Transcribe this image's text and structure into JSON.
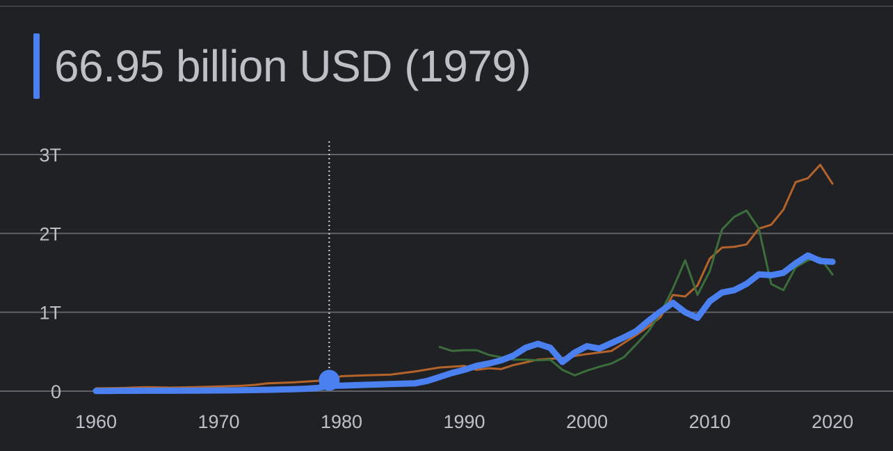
{
  "headline": {
    "value_text": "66.95 billion USD (1979)"
  },
  "colors": {
    "background": "#202124",
    "grid": "#5f6368",
    "axis_text": "#bdc1c6",
    "primary_series": "#4a80f0",
    "series_orange": "#b4642b",
    "series_green": "#3c6e3c"
  },
  "chart_data": {
    "type": "line",
    "title": "",
    "xlabel": "",
    "ylabel": "",
    "xlim": [
      1960,
      2020
    ],
    "ylim": [
      0,
      3
    ],
    "y_unit": "trillion USD",
    "x_ticks": [
      "1960",
      "1970",
      "1980",
      "1990",
      "2000",
      "2010",
      "2020"
    ],
    "y_ticks": [
      "0",
      "1T",
      "2T",
      "3T"
    ],
    "grid": true,
    "highlight": {
      "x": 1979,
      "y": 0.06695
    },
    "series": [
      {
        "color": "#4a80f0",
        "primary": true,
        "x": [
          1960,
          1961,
          1962,
          1963,
          1964,
          1965,
          1966,
          1967,
          1968,
          1969,
          1970,
          1971,
          1972,
          1973,
          1974,
          1975,
          1976,
          1977,
          1978,
          1979,
          1980,
          1981,
          1982,
          1983,
          1984,
          1985,
          1986,
          1987,
          1988,
          1989,
          1990,
          1991,
          1992,
          1993,
          1994,
          1995,
          1996,
          1997,
          1998,
          1999,
          2000,
          2001,
          2002,
          2003,
          2004,
          2005,
          2006,
          2007,
          2008,
          2009,
          2010,
          2011,
          2012,
          2013,
          2014,
          2015,
          2016,
          2017,
          2018,
          2019,
          2020
        ],
        "y": [
          0.003,
          0.003,
          0.004,
          0.004,
          0.005,
          0.005,
          0.005,
          0.006,
          0.007,
          0.008,
          0.009,
          0.01,
          0.012,
          0.014,
          0.017,
          0.021,
          0.025,
          0.03,
          0.04,
          0.067,
          0.07,
          0.075,
          0.08,
          0.085,
          0.09,
          0.095,
          0.1,
          0.13,
          0.18,
          0.23,
          0.27,
          0.32,
          0.35,
          0.39,
          0.45,
          0.55,
          0.6,
          0.55,
          0.37,
          0.49,
          0.57,
          0.54,
          0.61,
          0.68,
          0.76,
          0.89,
          1.01,
          1.12,
          1.0,
          0.93,
          1.14,
          1.25,
          1.28,
          1.36,
          1.48,
          1.47,
          1.5,
          1.62,
          1.72,
          1.65,
          1.64
        ]
      },
      {
        "color": "#b4642b",
        "x": [
          1960,
          1962,
          1964,
          1966,
          1968,
          1970,
          1972,
          1973,
          1974,
          1976,
          1978,
          1979,
          1980,
          1982,
          1984,
          1986,
          1988,
          1990,
          1991,
          1992,
          1993,
          1994,
          1996,
          1998,
          2000,
          2001,
          2002,
          2003,
          2004,
          2005,
          2006,
          2007,
          2008,
          2009,
          2010,
          2011,
          2012,
          2013,
          2014,
          2015,
          2016,
          2017,
          2018,
          2019,
          2020
        ],
        "y": [
          0.035,
          0.04,
          0.05,
          0.045,
          0.05,
          0.06,
          0.07,
          0.08,
          0.1,
          0.11,
          0.13,
          0.15,
          0.19,
          0.2,
          0.21,
          0.25,
          0.3,
          0.32,
          0.27,
          0.29,
          0.28,
          0.33,
          0.4,
          0.42,
          0.47,
          0.49,
          0.51,
          0.61,
          0.71,
          0.82,
          0.94,
          1.22,
          1.2,
          1.34,
          1.68,
          1.82,
          1.83,
          1.86,
          2.06,
          2.11,
          2.3,
          2.65,
          2.7,
          2.87,
          2.63
        ]
      },
      {
        "color": "#3c6e3c",
        "x": [
          1988,
          1989,
          1990,
          1991,
          1992,
          1993,
          1994,
          1995,
          1996,
          1997,
          1998,
          1999,
          2000,
          2001,
          2002,
          2003,
          2004,
          2005,
          2006,
          2007,
          2008,
          2009,
          2010,
          2011,
          2012,
          2013,
          2014,
          2015,
          2016,
          2017,
          2018,
          2019,
          2020
        ],
        "y": [
          0.56,
          0.51,
          0.52,
          0.52,
          0.46,
          0.43,
          0.4,
          0.4,
          0.39,
          0.4,
          0.27,
          0.2,
          0.26,
          0.31,
          0.35,
          0.43,
          0.59,
          0.76,
          0.99,
          1.3,
          1.66,
          1.22,
          1.52,
          2.05,
          2.21,
          2.29,
          2.06,
          1.36,
          1.28,
          1.57,
          1.66,
          1.69,
          1.48
        ]
      }
    ]
  }
}
